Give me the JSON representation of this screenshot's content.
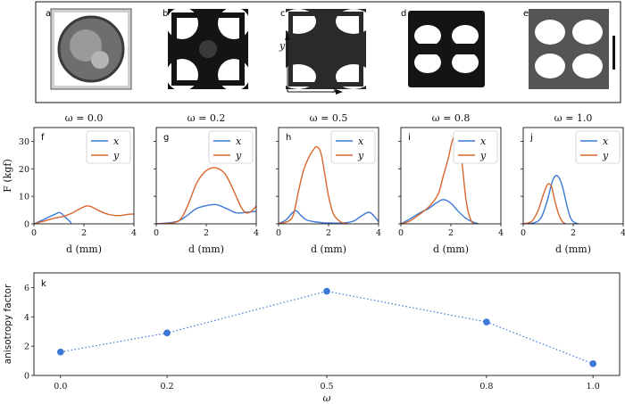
{
  "colors": {
    "x": "#3b78d8",
    "y": "#d8662e",
    "k": "#3b78d8"
  },
  "photos": [
    {
      "label": "a",
      "shape": "ring"
    },
    {
      "label": "b",
      "shape": "hole"
    },
    {
      "label": "c",
      "shape": "neck",
      "axis_y": "y",
      "axis_x": "x"
    },
    {
      "label": "d",
      "shape": "solid"
    },
    {
      "label": "e",
      "shape": "four"
    }
  ],
  "ylabel": "F (kgf)",
  "xlabel": "d (mm)",
  "legend": {
    "x": "x",
    "y": "y"
  },
  "chart_data": [
    {
      "type": "line",
      "panel": "f",
      "title": "ω = 0.0",
      "xlim": [
        0,
        4
      ],
      "ylim": [
        0,
        35
      ],
      "xticks": [
        0,
        2,
        4
      ],
      "yticks": [
        0,
        10,
        20,
        30
      ],
      "xlabel": "d (mm)",
      "ylabel": "F (kgf)",
      "series": [
        {
          "name": "x",
          "x": [
            0,
            0.3,
            0.6,
            0.8,
            1.0,
            1.1,
            1.25,
            1.5
          ],
          "y": [
            0,
            1.2,
            2.5,
            3.3,
            4.1,
            3.8,
            2.5,
            0.3
          ]
        },
        {
          "name": "y",
          "x": [
            0,
            0.4,
            0.8,
            1.2,
            1.5,
            1.8,
            2.1,
            2.3,
            2.6,
            3.0,
            3.4,
            3.8,
            4.0
          ],
          "y": [
            0,
            1.0,
            2.0,
            2.8,
            3.8,
            5.3,
            6.5,
            6.2,
            4.8,
            3.4,
            3.0,
            3.5,
            3.6
          ]
        }
      ]
    },
    {
      "type": "line",
      "panel": "g",
      "title": "ω = 0.2",
      "xlim": [
        0,
        4
      ],
      "ylim": [
        0,
        35
      ],
      "xticks": [
        0,
        2,
        4
      ],
      "yticks": [
        0,
        10,
        20,
        30
      ],
      "xlabel": "d (mm)",
      "series": [
        {
          "name": "x",
          "x": [
            0,
            0.8,
            1.2,
            1.6,
            2.0,
            2.4,
            2.8,
            3.2,
            3.6,
            4.0
          ],
          "y": [
            0,
            0.8,
            2.8,
            5.5,
            6.6,
            7.0,
            5.6,
            4.0,
            4.2,
            4.5
          ]
        },
        {
          "name": "y",
          "x": [
            0,
            0.7,
            1.0,
            1.3,
            1.6,
            1.9,
            2.2,
            2.5,
            2.8,
            3.1,
            3.4,
            3.6,
            3.8,
            4.0
          ],
          "y": [
            0,
            0.4,
            2.0,
            7.5,
            14.5,
            18.5,
            20.3,
            20.0,
            17.5,
            12.0,
            6.0,
            4.0,
            4.5,
            6.5
          ]
        }
      ]
    },
    {
      "type": "line",
      "panel": "h",
      "title": "ω = 0.5",
      "xlim": [
        0,
        4
      ],
      "ylim": [
        0,
        35
      ],
      "xticks": [
        0,
        2,
        4
      ],
      "yticks": [
        0,
        10,
        20,
        30
      ],
      "xlabel": "d (mm)",
      "series": [
        {
          "name": "x",
          "x": [
            0,
            0.3,
            0.55,
            0.7,
            0.9,
            1.1,
            1.4,
            1.8,
            2.2,
            2.6,
            3.0,
            3.3,
            3.6,
            3.8,
            4.0
          ],
          "y": [
            0,
            1.5,
            4.0,
            4.8,
            3.0,
            1.5,
            0.8,
            0.4,
            0.3,
            0.3,
            1.0,
            2.8,
            4.2,
            3.0,
            0.8
          ]
        },
        {
          "name": "y",
          "x": [
            0,
            0.4,
            0.6,
            0.8,
            1.0,
            1.2,
            1.4,
            1.55,
            1.7,
            1.85,
            2.0,
            2.2,
            2.5,
            2.8
          ],
          "y": [
            0,
            1.0,
            3.5,
            12.0,
            19.5,
            24.0,
            27.0,
            28.0,
            25.5,
            18.0,
            10.0,
            3.5,
            0.6,
            0
          ]
        }
      ]
    },
    {
      "type": "line",
      "panel": "i",
      "title": "ω = 0.8",
      "xlim": [
        0,
        4
      ],
      "ylim": [
        0,
        35
      ],
      "xticks": [
        0,
        2,
        4
      ],
      "yticks": [
        0,
        10,
        20,
        30
      ],
      "xlabel": "d (mm)",
      "series": [
        {
          "name": "x",
          "x": [
            0,
            0.4,
            0.8,
            1.1,
            1.4,
            1.7,
            2.0,
            2.3,
            2.6,
            2.9,
            3.1
          ],
          "y": [
            0,
            2.0,
            4.2,
            5.5,
            7.5,
            8.8,
            7.5,
            4.5,
            2.0,
            0.6,
            0
          ]
        },
        {
          "name": "y",
          "x": [
            0,
            0.3,
            0.6,
            0.9,
            1.2,
            1.5,
            1.7,
            1.9,
            2.05,
            2.2,
            2.35,
            2.45,
            2.6,
            2.75,
            2.9
          ],
          "y": [
            0,
            0.8,
            2.5,
            4.5,
            7.0,
            11.0,
            17.5,
            24.0,
            30.0,
            32.5,
            31.5,
            22.0,
            9.0,
            2.5,
            0
          ]
        }
      ]
    },
    {
      "type": "line",
      "panel": "j",
      "title": "ω = 1.0",
      "xlim": [
        0,
        4
      ],
      "ylim": [
        0,
        35
      ],
      "xticks": [
        0,
        2,
        4
      ],
      "yticks": [
        0,
        10,
        20,
        30
      ],
      "xlabel": "d (mm)",
      "series": [
        {
          "name": "x",
          "x": [
            0,
            0.4,
            0.7,
            0.95,
            1.15,
            1.3,
            1.45,
            1.6,
            1.75,
            1.9,
            2.05,
            2.2
          ],
          "y": [
            0,
            0.3,
            2.0,
            8.0,
            15.0,
            17.5,
            16.5,
            12.5,
            6.5,
            2.0,
            0.5,
            0
          ]
        },
        {
          "name": "y",
          "x": [
            0,
            0.35,
            0.6,
            0.8,
            0.95,
            1.05,
            1.15,
            1.25,
            1.4,
            1.55,
            1.7
          ],
          "y": [
            0,
            1.0,
            5.0,
            10.5,
            14.0,
            14.5,
            13.0,
            9.0,
            4.0,
            1.0,
            0
          ]
        }
      ]
    },
    {
      "type": "scatter",
      "panel": "k",
      "xlabel": "ω",
      "ylabel": "anisotropy factor",
      "xlim": [
        -0.05,
        1.05
      ],
      "ylim": [
        0,
        7
      ],
      "xticks": [
        0.0,
        0.2,
        0.5,
        0.8,
        1.0
      ],
      "xticklabels": [
        "0.0",
        "0.2",
        "0.5",
        "0.8",
        "1.0"
      ],
      "yticks": [
        0,
        2,
        4,
        6
      ],
      "x": [
        0.0,
        0.2,
        0.5,
        0.8,
        1.0
      ],
      "y": [
        1.6,
        2.9,
        5.75,
        3.65,
        0.8
      ]
    }
  ]
}
